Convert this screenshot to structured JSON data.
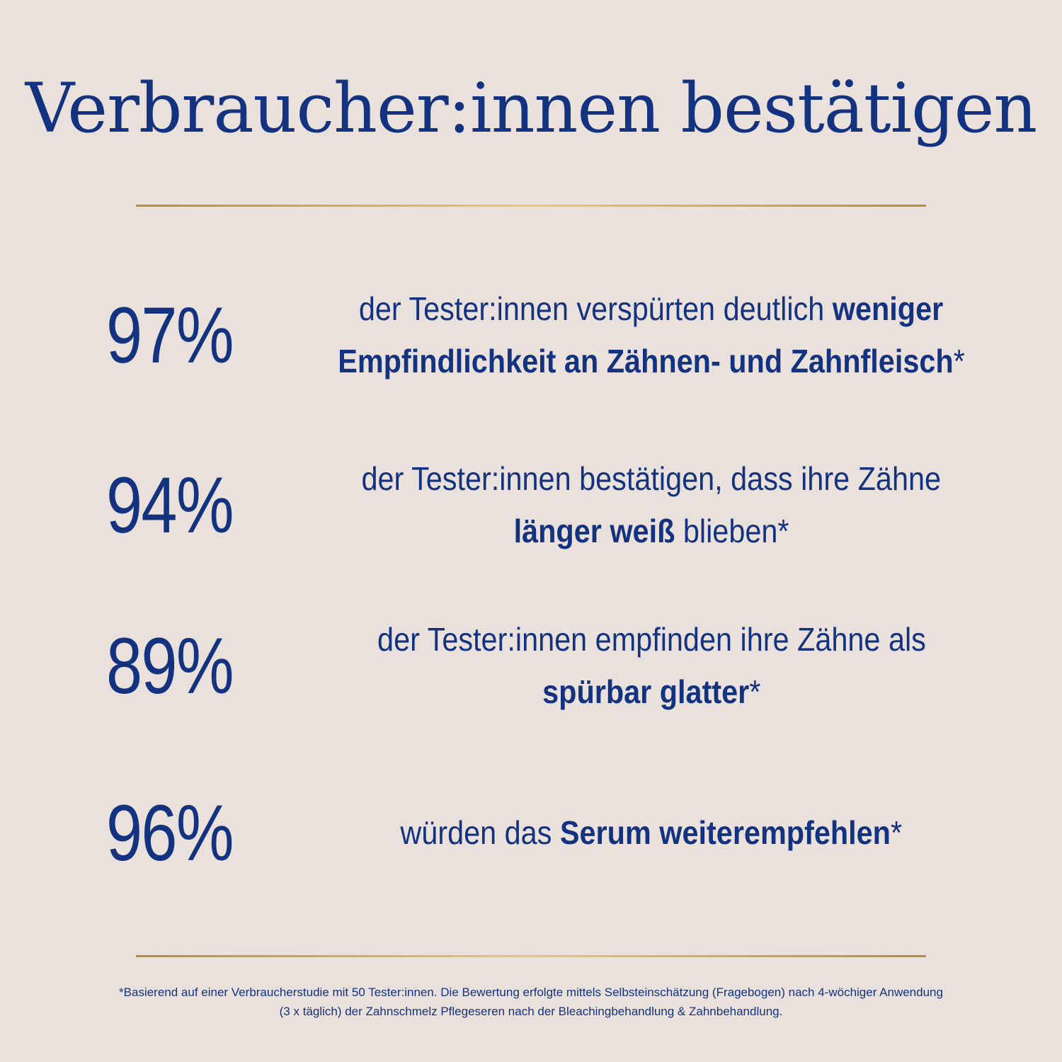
{
  "title": "Verbraucher:innen bestätigen",
  "stats": [
    {
      "percent": "97%",
      "line1_normal": "der Tester:innen verspürten deutlich ",
      "line1_bold": "weniger",
      "line2_bold": "Empfindlichkeit an Zähnen- und Zahnfleisch",
      "line2_normal": "*"
    },
    {
      "percent": "94%",
      "line1_normal": "der Tester:innen bestätigen, dass ihre Zähne",
      "line2_bold": "länger weiß",
      "line2_normal": " blieben*"
    },
    {
      "percent": "89%",
      "line1_normal": "der Tester:innen empfinden ihre Zähne als",
      "line2_bold": "spürbar glatter",
      "line2_normal": "*"
    },
    {
      "percent": "96%",
      "line1_normal": "würden das ",
      "line1_bold": "Serum weiterempfehlen",
      "line1_tail": "*"
    }
  ],
  "footnote": {
    "line1": "*Basierend auf einer Verbraucherstudie mit 50 Tester:innen. Die Bewertung erfolgte mittels Selbsteinschätzung (Fragebogen) nach 4-wöchiger Anwendung",
    "line2": "(3 x täglich) der Zahnschmelz Pflegeseren nach der Bleachingbehandlung & Zahnbehandlung."
  },
  "colors": {
    "background": "#eae1dc",
    "text": "#13327f",
    "accent_gold": "#c9a455"
  }
}
